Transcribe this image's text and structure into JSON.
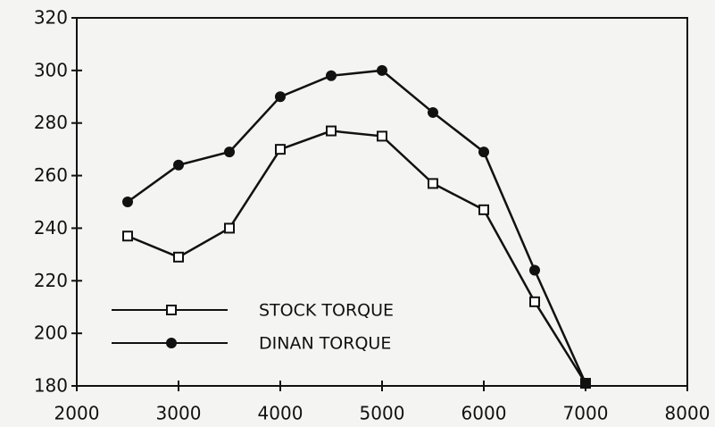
{
  "chart_data": {
    "type": "line",
    "x": [
      2500,
      3000,
      3500,
      4000,
      4500,
      5000,
      5500,
      6000,
      6500,
      7000
    ],
    "series": [
      {
        "name": "STOCK TORQUE",
        "color": "#111111",
        "marker": "open-square",
        "values": [
          237,
          229,
          240,
          270,
          277,
          275,
          257,
          247,
          212,
          181
        ]
      },
      {
        "name": "DINAN TORQUE",
        "color": "#111111",
        "marker": "filled-circle",
        "values": [
          250,
          264,
          269,
          290,
          298,
          300,
          284,
          269,
          224,
          181
        ]
      }
    ],
    "xlim": [
      2000,
      8000
    ],
    "xticks": [
      2000,
      3000,
      4000,
      5000,
      6000,
      7000,
      8000
    ],
    "ylim": [
      180,
      320
    ],
    "yticks": [
      180,
      200,
      220,
      240,
      260,
      280,
      300,
      320
    ]
  }
}
